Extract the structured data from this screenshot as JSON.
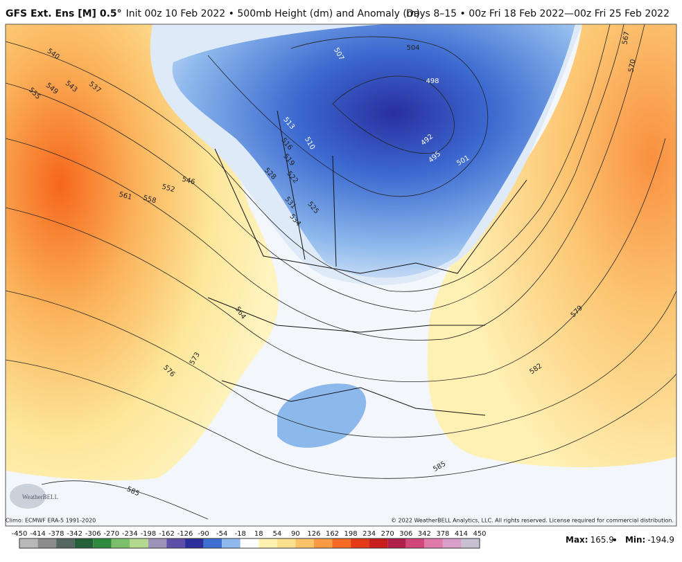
{
  "header": {
    "title_bold": "GFS Ext.  Ens [M] 0.5°",
    "title_rest": "Init 00z 10 Feb 2022 • 500mb Height (dm) and Anomaly (m)",
    "title_right": "Days 8–15 • 00z Fri 18 Feb 2022—00z Fri 25 Feb 2022"
  },
  "map": {
    "contour_labels": [
      540,
      549,
      543,
      537,
      555,
      546,
      552,
      561,
      558,
      507,
      504,
      498,
      492,
      495,
      501,
      513,
      516,
      510,
      519,
      528,
      522,
      531,
      525,
      534,
      564,
      573,
      576,
      585,
      585,
      582,
      579,
      570,
      567
    ],
    "logo": "WeatherBELL"
  },
  "footer": {
    "climo": "Climo: ECMWF ERA-5 1991-2020",
    "copyright": "© 2022 WeatherBELL Analytics, LLC. All rights reserved. License required for commercial distribution."
  },
  "colorbar": {
    "ticks": [
      -450,
      -414,
      -378,
      -342,
      -306,
      -270,
      -234,
      -198,
      -162,
      -126,
      -90,
      -54,
      -18,
      18,
      54,
      90,
      126,
      162,
      198,
      234,
      270,
      306,
      342,
      378,
      414,
      450
    ]
  },
  "stats": {
    "max_label": "Max:",
    "max": 165.9,
    "min_label": "Min:",
    "min": -194.9
  }
}
